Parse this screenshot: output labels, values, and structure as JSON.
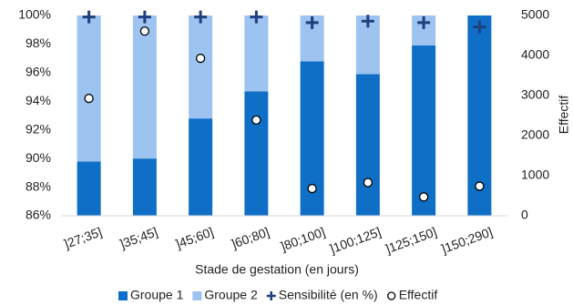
{
  "chart_data": {
    "type": "bar",
    "x_label": "Stade de gestation (en jours)",
    "y2_label": "Effectif",
    "categories": [
      "]27;35]",
      "]35;45]",
      "]45;60]",
      "]60;80]",
      "]80;100]",
      "]100;125]",
      "]125;150]",
      "]150;290]"
    ],
    "series": [
      {
        "name": "Groupe 1",
        "color": "#0f6fc6",
        "marker": "bar",
        "values": [
          89.8,
          90.0,
          92.8,
          94.7,
          96.8,
          95.9,
          97.9,
          100
        ]
      },
      {
        "name": "Groupe 2",
        "color": "#9dc3f0",
        "marker": "bar",
        "values": [
          10.2,
          10.0,
          7.2,
          5.3,
          3.2,
          4.1,
          2.1,
          0
        ]
      },
      {
        "name": "Sensibilité (en %)",
        "color": "#1f3f7f",
        "marker": "plus",
        "values": [
          99.9,
          99.9,
          99.9,
          99.9,
          99.5,
          99.6,
          99.5,
          99.2
        ]
      },
      {
        "name": "Effectif",
        "color": "#ffffff",
        "marker": "circle",
        "axis": "y2",
        "values": [
          2930,
          4610,
          3930,
          2390,
          680,
          830,
          470,
          740
        ]
      }
    ],
    "stacked": true,
    "ylim": [
      86,
      100
    ],
    "yticks": [
      {
        "value": 86,
        "label": "86%"
      },
      {
        "value": 88,
        "label": "88%"
      },
      {
        "value": 90,
        "label": "90%"
      },
      {
        "value": 92,
        "label": "92%"
      },
      {
        "value": 94,
        "label": "94%"
      },
      {
        "value": 96,
        "label": "96%"
      },
      {
        "value": 98,
        "label": "98%"
      },
      {
        "value": 100,
        "label": "100%"
      }
    ],
    "y2lim": [
      0,
      5000
    ],
    "y2ticks": [
      0,
      1000,
      2000,
      3000,
      4000,
      5000
    ]
  }
}
